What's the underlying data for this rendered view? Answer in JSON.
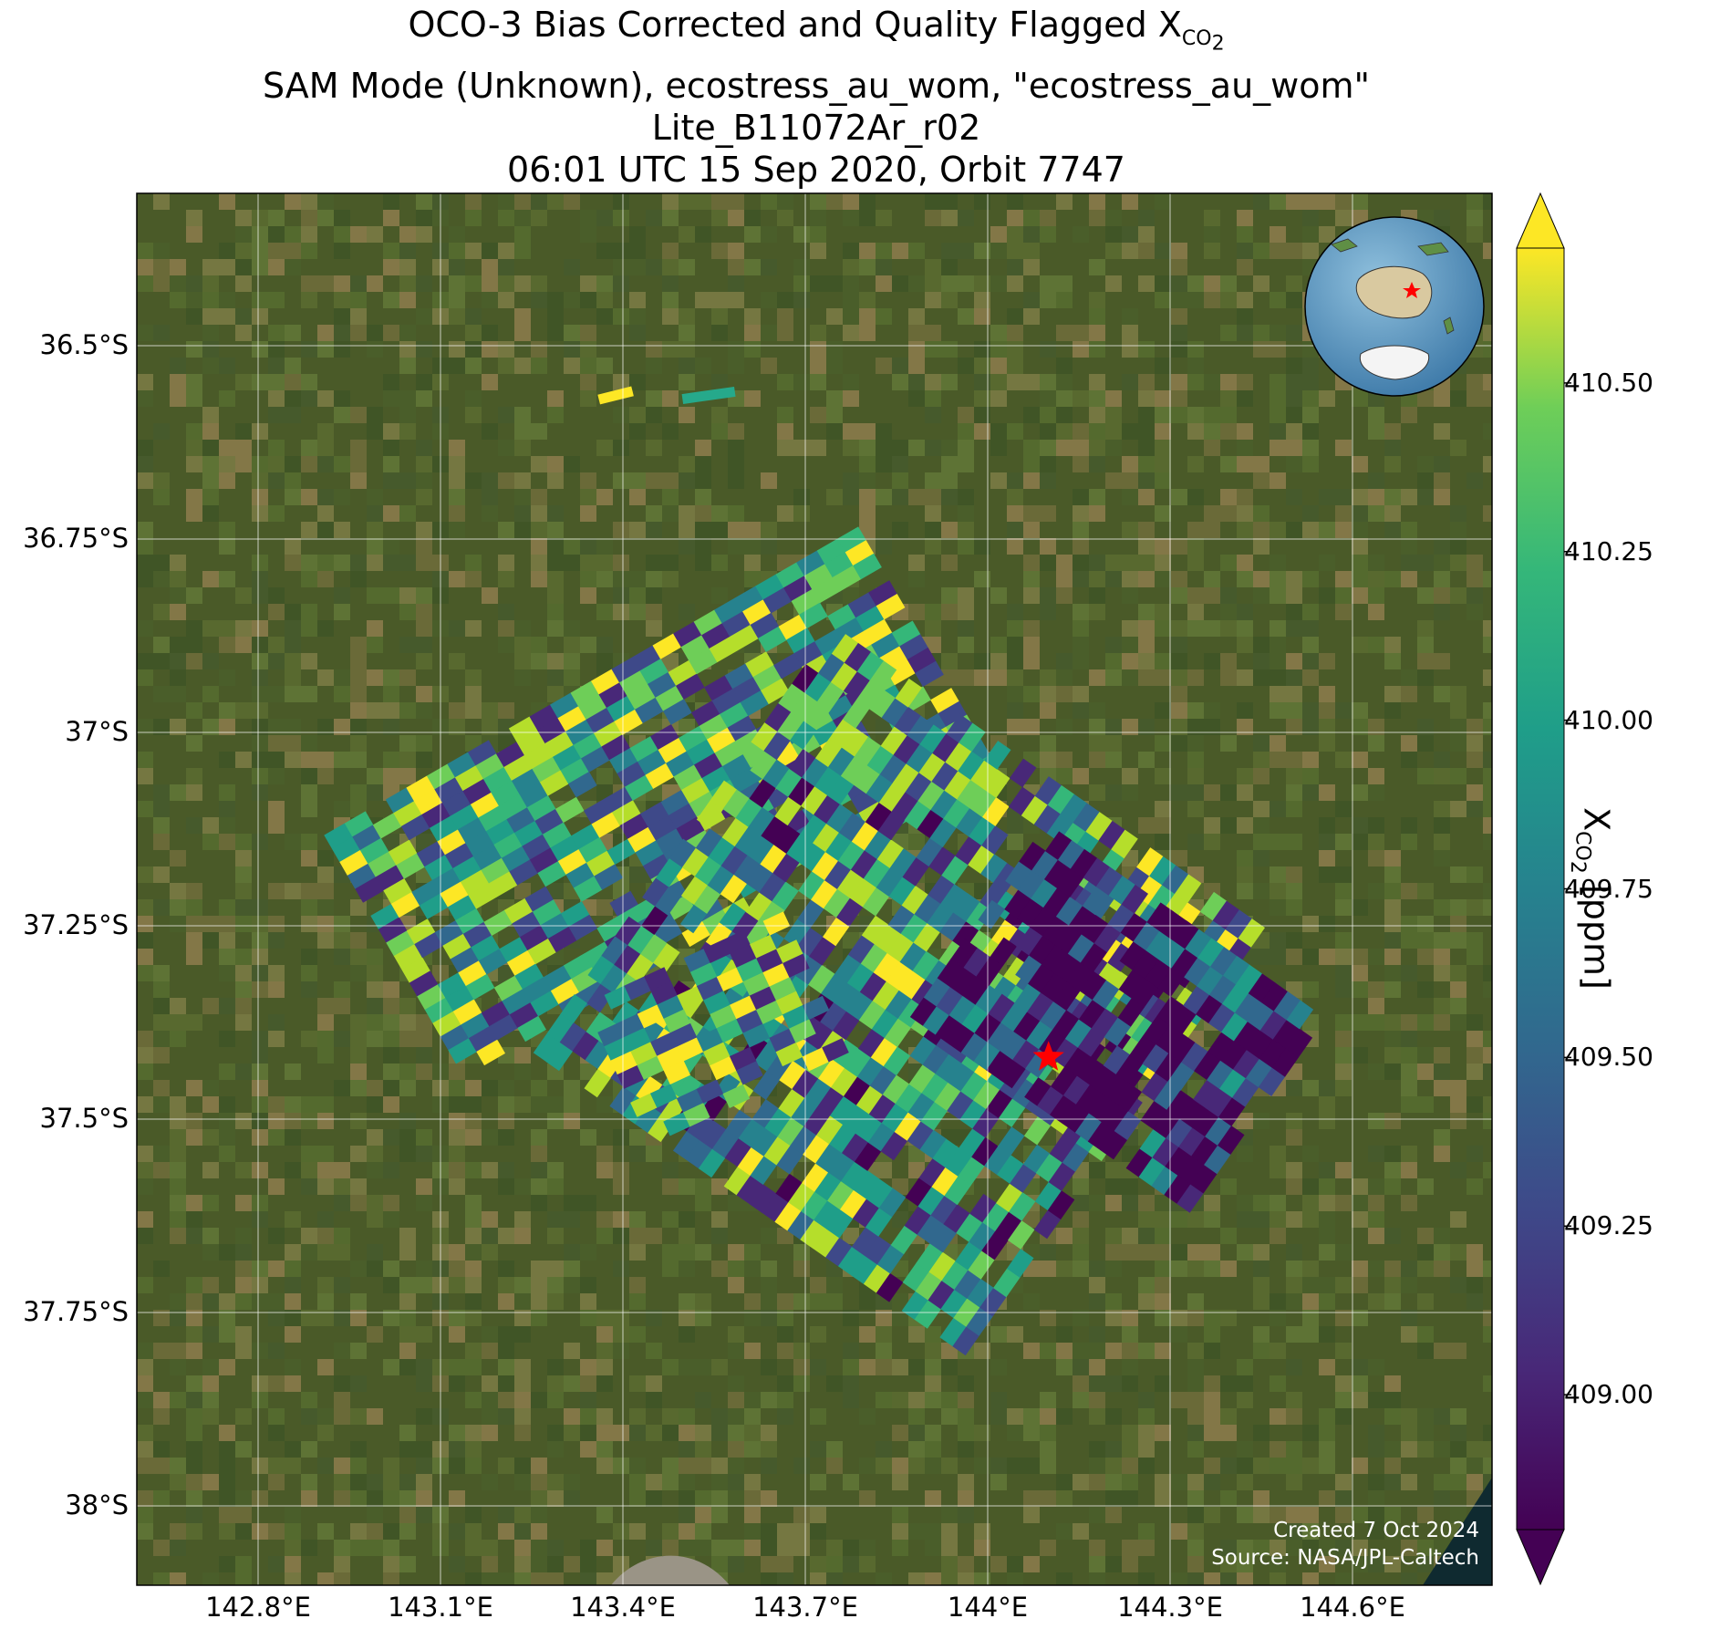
{
  "title": {
    "line1_main": "OCO-3 Bias Corrected and Quality Flagged X",
    "line1_sub": "CO",
    "line1_sub2": "2",
    "line2": "SAM Mode (Unknown), ecostress_au_wom, \"ecostress_au_wom\"",
    "line3": "Lite_B11072Ar_r02",
    "line4": "06:01 UTC 15 Sep 2020, Orbit 7747"
  },
  "axes": {
    "lat_labels": [
      "36.5°S",
      "36.75°S",
      "37°S",
      "37.25°S",
      "37.5°S",
      "37.75°S",
      "38°S"
    ],
    "lon_labels": [
      "142.8°E",
      "143.1°E",
      "143.4°E",
      "143.7°E",
      "144°E",
      "144.3°E",
      "144.6°E"
    ]
  },
  "colorbar": {
    "title_main": "X",
    "title_sub": "CO",
    "title_sub2": "2",
    "title_unit": " [ppm]",
    "ticks": [
      "410.50",
      "410.25",
      "410.00",
      "409.75",
      "409.50",
      "409.25",
      "409.00"
    ],
    "range": [
      408.8,
      410.7
    ],
    "colormap": "viridis",
    "extend": "both"
  },
  "credit": {
    "line1": "Created 7 Oct 2024",
    "line2": "Source: NASA/JPL-Caltech"
  },
  "target_marker": {
    "symbol": "star",
    "color": "#ff0000",
    "lon": 144.1,
    "lat": -37.42
  },
  "inset_globe": {
    "marker_color": "#ff0000",
    "region": "Australia"
  },
  "colors": {
    "gridline": "#ffffff",
    "land_base": "#4a5a28",
    "ocean": "#0f2a30"
  }
}
